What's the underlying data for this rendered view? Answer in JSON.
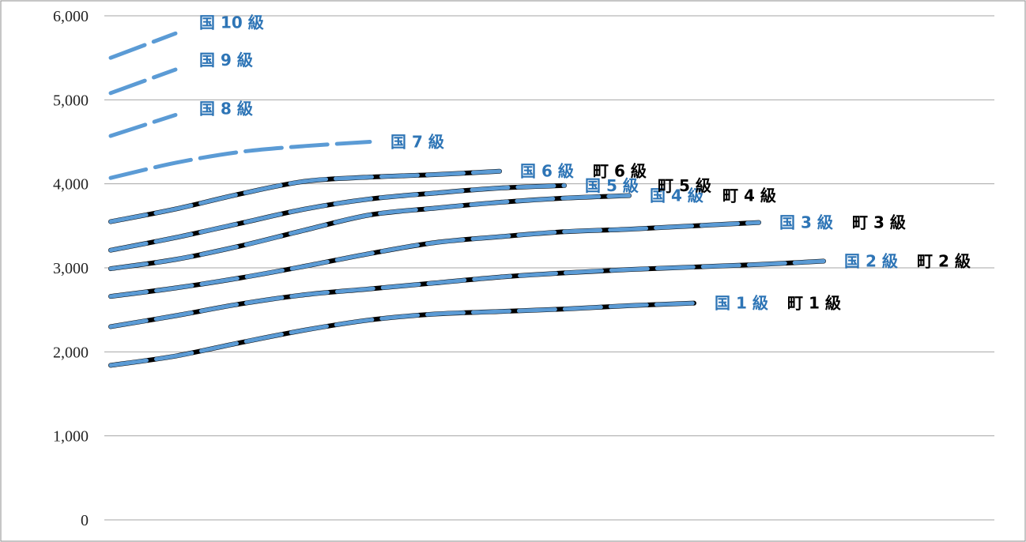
{
  "chart_data": {
    "type": "line",
    "title": "",
    "xlabel": "",
    "ylabel": "",
    "ylim": [
      0,
      6000
    ],
    "y_ticks": [
      "0",
      "1,000",
      "2,000",
      "3,000",
      "4,000",
      "5,000",
      "6,000"
    ],
    "y_tick_values": [
      0,
      1000,
      2000,
      3000,
      4000,
      5000,
      6000
    ],
    "x_axis_labels_shown": false,
    "x_points": [
      0,
      1,
      2,
      3,
      4,
      5,
      6,
      7,
      8,
      9,
      10,
      11,
      12
    ],
    "grid": "horizontal",
    "colors": {
      "national": "#5b9bd5",
      "town": "#000000",
      "grid": "#a6a6a6",
      "label_national": "#2e75b6",
      "label_town": "#000000"
    },
    "series": [
      {
        "group": "national",
        "label": "国 1 級",
        "values": [
          1840,
          1950,
          2110,
          2260,
          2380,
          2450,
          2480,
          2510,
          2550,
          2580
        ]
      },
      {
        "group": "town",
        "label": "町 1 級",
        "values": [
          1840,
          1950,
          2110,
          2260,
          2380,
          2450,
          2480,
          2510,
          2550,
          2580
        ]
      },
      {
        "group": "national",
        "label": "国 2 級",
        "values": [
          2300,
          2430,
          2570,
          2680,
          2750,
          2820,
          2890,
          2940,
          2980,
          3010,
          3040,
          3080
        ]
      },
      {
        "group": "town",
        "label": "町 2 級",
        "values": [
          2300,
          2430,
          2570,
          2680,
          2750,
          2820,
          2890,
          2940,
          2980,
          3010,
          3040,
          3080
        ]
      },
      {
        "group": "national",
        "label": "国 3 級",
        "values": [
          2660,
          2760,
          2880,
          3020,
          3170,
          3300,
          3370,
          3430,
          3460,
          3500,
          3540
        ]
      },
      {
        "group": "town",
        "label": "町 3 級",
        "values": [
          2660,
          2760,
          2880,
          3020,
          3170,
          3300,
          3370,
          3430,
          3460,
          3500,
          3540
        ]
      },
      {
        "group": "national",
        "label": "国 4 級",
        "values": [
          2990,
          3100,
          3260,
          3450,
          3630,
          3710,
          3780,
          3830,
          3860
        ]
      },
      {
        "group": "town",
        "label": "町 4 級",
        "values": [
          2990,
          3100,
          3260,
          3450,
          3630,
          3710,
          3780,
          3830,
          3860
        ]
      },
      {
        "group": "national",
        "label": "国 5 級",
        "values": [
          3210,
          3360,
          3530,
          3700,
          3820,
          3890,
          3950,
          3980
        ]
      },
      {
        "group": "town",
        "label": "町 5 級",
        "values": [
          3210,
          3360,
          3530,
          3700,
          3820,
          3890,
          3950,
          3980
        ]
      },
      {
        "group": "national",
        "label": "国 6 級",
        "values": [
          3550,
          3700,
          3880,
          4030,
          4080,
          4110,
          4150
        ]
      },
      {
        "group": "town",
        "label": "町 6 級",
        "values": [
          3550,
          3700,
          3880,
          4030,
          4080,
          4110,
          4150
        ]
      },
      {
        "group": "national",
        "label": "国 7 級",
        "values": [
          4070,
          4250,
          4380,
          4450,
          4500
        ]
      },
      {
        "group": "national",
        "label": "国 8 級",
        "values": [
          4570,
          4820
        ]
      },
      {
        "group": "national",
        "label": "国 9 級",
        "values": [
          5080,
          5360
        ]
      },
      {
        "group": "national",
        "label": "国 10 級",
        "values": [
          5500,
          5790
        ]
      }
    ]
  }
}
